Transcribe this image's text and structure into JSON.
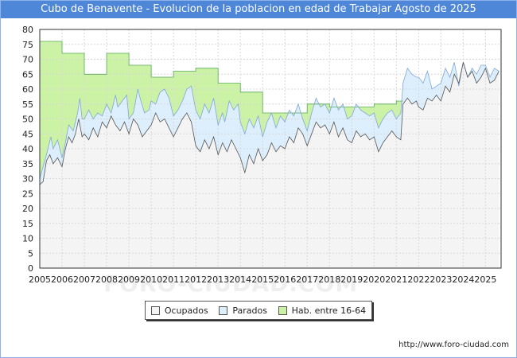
{
  "chart_data": {
    "type": "area",
    "title": "Cubo de Benavente - Evolucion de la poblacion en edad de Trabajar Agosto de 2025",
    "xlabel": "",
    "ylabel": "",
    "ylim": [
      0,
      80
    ],
    "yticks": [
      0,
      5,
      10,
      15,
      20,
      25,
      30,
      35,
      40,
      45,
      50,
      55,
      60,
      65,
      70,
      75,
      80
    ],
    "xlim": [
      2005,
      2025.7
    ],
    "xticks": [
      "2005",
      "2006",
      "2007",
      "2008",
      "2009",
      "2010",
      "2011",
      "2012",
      "2013",
      "2014",
      "2015",
      "2016",
      "2017",
      "2018",
      "2019",
      "2020",
      "2021",
      "2022",
      "2023",
      "2024",
      "2025"
    ],
    "grid": true,
    "series": [
      {
        "name": "Hab. entre 16-64",
        "color": "#ccf2a6",
        "line_color": "#55aa55",
        "points": [
          [
            2005.0,
            76
          ],
          [
            2006.0,
            76
          ],
          [
            2006.0,
            72
          ],
          [
            2007.0,
            72
          ],
          [
            2007.0,
            65
          ],
          [
            2008.0,
            65
          ],
          [
            2008.0,
            72
          ],
          [
            2009.0,
            72
          ],
          [
            2009.0,
            68
          ],
          [
            2010.0,
            68
          ],
          [
            2010.0,
            64
          ],
          [
            2011.0,
            64
          ],
          [
            2011.0,
            66
          ],
          [
            2012.0,
            66
          ],
          [
            2012.0,
            67
          ],
          [
            2013.0,
            67
          ],
          [
            2013.0,
            62
          ],
          [
            2014.0,
            62
          ],
          [
            2014.0,
            59
          ],
          [
            2015.0,
            59
          ],
          [
            2015.0,
            52
          ],
          [
            2016.0,
            52
          ],
          [
            2016.0,
            52
          ],
          [
            2017.0,
            52
          ],
          [
            2017.0,
            55
          ],
          [
            2018.0,
            55
          ],
          [
            2018.0,
            54
          ],
          [
            2019.0,
            54
          ],
          [
            2019.0,
            54
          ],
          [
            2020.0,
            54
          ],
          [
            2020.0,
            55
          ],
          [
            2021.0,
            55
          ],
          [
            2021.0,
            56
          ],
          [
            2021.3,
            56
          ]
        ]
      },
      {
        "name": "Parados",
        "color": "#ddeefc",
        "line_color": "#7fa8d8",
        "points": [
          [
            2005.0,
            30
          ],
          [
            2005.3,
            38
          ],
          [
            2005.5,
            44
          ],
          [
            2005.6,
            40
          ],
          [
            2005.8,
            43
          ],
          [
            2006.0,
            37
          ],
          [
            2006.15,
            42
          ],
          [
            2006.3,
            48
          ],
          [
            2006.5,
            46
          ],
          [
            2006.7,
            52
          ],
          [
            2006.8,
            57
          ],
          [
            2006.9,
            50
          ],
          [
            2007.0,
            50
          ],
          [
            2007.2,
            53
          ],
          [
            2007.4,
            50
          ],
          [
            2007.6,
            52
          ],
          [
            2007.8,
            51
          ],
          [
            2008.0,
            55
          ],
          [
            2008.2,
            52
          ],
          [
            2008.4,
            58
          ],
          [
            2008.5,
            54
          ],
          [
            2008.7,
            56
          ],
          [
            2008.9,
            58
          ],
          [
            2009.0,
            50
          ],
          [
            2009.2,
            52
          ],
          [
            2009.4,
            60
          ],
          [
            2009.5,
            57
          ],
          [
            2009.7,
            52
          ],
          [
            2009.9,
            53
          ],
          [
            2010.0,
            56
          ],
          [
            2010.2,
            55
          ],
          [
            2010.4,
            59
          ],
          [
            2010.6,
            60
          ],
          [
            2010.8,
            57
          ],
          [
            2011.0,
            51
          ],
          [
            2011.2,
            53
          ],
          [
            2011.4,
            56
          ],
          [
            2011.6,
            60
          ],
          [
            2011.8,
            61
          ],
          [
            2012.0,
            53
          ],
          [
            2012.2,
            50
          ],
          [
            2012.4,
            55
          ],
          [
            2012.6,
            52
          ],
          [
            2012.8,
            57
          ],
          [
            2013.0,
            48
          ],
          [
            2013.2,
            52
          ],
          [
            2013.3,
            49
          ],
          [
            2013.5,
            56
          ],
          [
            2013.7,
            53
          ],
          [
            2013.9,
            55
          ],
          [
            2014.0,
            49
          ],
          [
            2014.2,
            45
          ],
          [
            2014.4,
            50
          ],
          [
            2014.6,
            47
          ],
          [
            2014.8,
            51
          ],
          [
            2015.0,
            44
          ],
          [
            2015.2,
            49
          ],
          [
            2015.4,
            52
          ],
          [
            2015.6,
            47
          ],
          [
            2015.8,
            51
          ],
          [
            2016.0,
            49
          ],
          [
            2016.2,
            53
          ],
          [
            2016.4,
            51
          ],
          [
            2016.6,
            55
          ],
          [
            2016.8,
            50
          ],
          [
            2017.0,
            46
          ],
          [
            2017.2,
            52
          ],
          [
            2017.4,
            57
          ],
          [
            2017.6,
            54
          ],
          [
            2017.8,
            55
          ],
          [
            2018.0,
            52
          ],
          [
            2018.2,
            57
          ],
          [
            2018.4,
            53
          ],
          [
            2018.6,
            55
          ],
          [
            2018.8,
            50
          ],
          [
            2019.0,
            51
          ],
          [
            2019.2,
            55
          ],
          [
            2019.4,
            53
          ],
          [
            2019.6,
            52
          ],
          [
            2019.8,
            51
          ],
          [
            2020.0,
            52
          ],
          [
            2020.2,
            47
          ],
          [
            2020.4,
            50
          ],
          [
            2020.6,
            52
          ],
          [
            2020.8,
            53
          ],
          [
            2021.0,
            50
          ],
          [
            2021.2,
            52
          ],
          [
            2021.3,
            62
          ],
          [
            2021.5,
            67
          ],
          [
            2021.7,
            65
          ],
          [
            2021.9,
            64
          ],
          [
            2022.0,
            64
          ],
          [
            2022.2,
            62
          ],
          [
            2022.4,
            66
          ],
          [
            2022.6,
            60
          ],
          [
            2022.8,
            61
          ],
          [
            2023.0,
            62
          ],
          [
            2023.2,
            67
          ],
          [
            2023.4,
            64
          ],
          [
            2023.6,
            69
          ],
          [
            2023.8,
            61
          ],
          [
            2024.0,
            69
          ],
          [
            2024.2,
            64
          ],
          [
            2024.4,
            67
          ],
          [
            2024.6,
            65
          ],
          [
            2024.8,
            68
          ],
          [
            2025.0,
            68
          ],
          [
            2025.2,
            64
          ],
          [
            2025.4,
            67
          ],
          [
            2025.6,
            66
          ]
        ]
      },
      {
        "name": "Ocupados",
        "color": "#f4f4f4",
        "line_color": "#555555",
        "points": [
          [
            2005.0,
            28
          ],
          [
            2005.15,
            29
          ],
          [
            2005.3,
            36
          ],
          [
            2005.45,
            38
          ],
          [
            2005.6,
            35
          ],
          [
            2005.8,
            37
          ],
          [
            2006.0,
            34
          ],
          [
            2006.15,
            40
          ],
          [
            2006.3,
            44
          ],
          [
            2006.45,
            42
          ],
          [
            2006.6,
            45
          ],
          [
            2006.75,
            50
          ],
          [
            2006.9,
            44
          ],
          [
            2007.0,
            45
          ],
          [
            2007.2,
            43
          ],
          [
            2007.4,
            47
          ],
          [
            2007.6,
            44
          ],
          [
            2007.8,
            49
          ],
          [
            2008.0,
            47
          ],
          [
            2008.2,
            51
          ],
          [
            2008.4,
            48
          ],
          [
            2008.6,
            46
          ],
          [
            2008.8,
            49
          ],
          [
            2009.0,
            45
          ],
          [
            2009.2,
            50
          ],
          [
            2009.4,
            48
          ],
          [
            2009.6,
            44
          ],
          [
            2009.8,
            46
          ],
          [
            2010.0,
            48
          ],
          [
            2010.2,
            52
          ],
          [
            2010.4,
            49
          ],
          [
            2010.6,
            50
          ],
          [
            2010.8,
            47
          ],
          [
            2011.0,
            44
          ],
          [
            2011.2,
            47
          ],
          [
            2011.4,
            50
          ],
          [
            2011.6,
            52
          ],
          [
            2011.8,
            49
          ],
          [
            2012.0,
            41
          ],
          [
            2012.2,
            39
          ],
          [
            2012.4,
            43
          ],
          [
            2012.6,
            40
          ],
          [
            2012.8,
            44
          ],
          [
            2013.0,
            38
          ],
          [
            2013.2,
            42
          ],
          [
            2013.4,
            39
          ],
          [
            2013.6,
            43
          ],
          [
            2013.8,
            40
          ],
          [
            2014.0,
            37
          ],
          [
            2014.2,
            32
          ],
          [
            2014.4,
            38
          ],
          [
            2014.6,
            35
          ],
          [
            2014.8,
            40
          ],
          [
            2015.0,
            36
          ],
          [
            2015.2,
            38
          ],
          [
            2015.4,
            42
          ],
          [
            2015.6,
            39
          ],
          [
            2015.8,
            41
          ],
          [
            2016.0,
            40
          ],
          [
            2016.2,
            44
          ],
          [
            2016.4,
            42
          ],
          [
            2016.6,
            47
          ],
          [
            2016.8,
            45
          ],
          [
            2017.0,
            41
          ],
          [
            2017.2,
            45
          ],
          [
            2017.4,
            49
          ],
          [
            2017.6,
            47
          ],
          [
            2017.8,
            48
          ],
          [
            2018.0,
            45
          ],
          [
            2018.2,
            49
          ],
          [
            2018.4,
            44
          ],
          [
            2018.6,
            47
          ],
          [
            2018.8,
            43
          ],
          [
            2019.0,
            42
          ],
          [
            2019.2,
            46
          ],
          [
            2019.4,
            44
          ],
          [
            2019.6,
            45
          ],
          [
            2019.8,
            43
          ],
          [
            2020.0,
            44
          ],
          [
            2020.2,
            39
          ],
          [
            2020.4,
            42
          ],
          [
            2020.6,
            44
          ],
          [
            2020.8,
            46
          ],
          [
            2021.0,
            44
          ],
          [
            2021.2,
            43
          ],
          [
            2021.3,
            55
          ],
          [
            2021.5,
            57
          ],
          [
            2021.7,
            55
          ],
          [
            2021.9,
            56
          ],
          [
            2022.0,
            54
          ],
          [
            2022.2,
            53
          ],
          [
            2022.4,
            57
          ],
          [
            2022.6,
            56
          ],
          [
            2022.8,
            58
          ],
          [
            2023.0,
            56
          ],
          [
            2023.2,
            61
          ],
          [
            2023.4,
            59
          ],
          [
            2023.6,
            65
          ],
          [
            2023.8,
            62
          ],
          [
            2024.0,
            69
          ],
          [
            2024.2,
            64
          ],
          [
            2024.4,
            66
          ],
          [
            2024.6,
            62
          ],
          [
            2024.8,
            64
          ],
          [
            2025.0,
            67
          ],
          [
            2025.2,
            62
          ],
          [
            2025.4,
            63
          ],
          [
            2025.6,
            66
          ]
        ]
      }
    ],
    "legend_position": "bottom-center"
  },
  "legend": {
    "items": [
      {
        "label": "Ocupados",
        "color": "#f4f4f4"
      },
      {
        "label": "Parados",
        "color": "#ddeefc"
      },
      {
        "label": "Hab. entre 16-64",
        "color": "#ccf2a6"
      }
    ]
  },
  "source": "http://www.foro-ciudad.com",
  "watermark": "FORO-CIUDAD.COM"
}
